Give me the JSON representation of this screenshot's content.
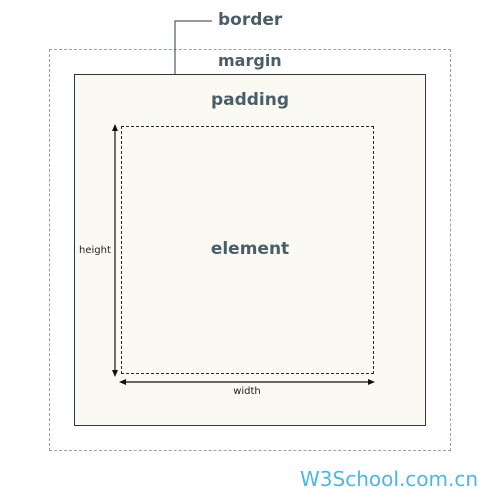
{
  "labels": {
    "border": "border",
    "margin": "margin",
    "padding": "padding",
    "element": "element",
    "height": "height",
    "width": "width"
  },
  "watermark": "W3School.com.cn",
  "colors": {
    "label_text": "#4a5e68",
    "border_fill": "#fafaf2",
    "watermark": "#4fb7dd"
  }
}
